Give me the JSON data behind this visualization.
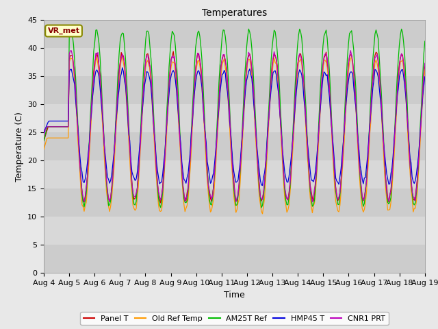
{
  "title": "Temperatures",
  "xlabel": "Time",
  "ylabel": "Temperature (C)",
  "ylim": [
    0,
    45
  ],
  "yticks": [
    0,
    5,
    10,
    15,
    20,
    25,
    30,
    35,
    40,
    45
  ],
  "background_color": "#e8e8e8",
  "plot_bg_color": "#d4d4d4",
  "series_colors": {
    "Panel T": "#cc0000",
    "Old Ref Temp": "#ff9900",
    "AM25T Ref": "#00bb00",
    "HMP45 T": "#0000dd",
    "CNR1 PRT": "#bb00bb"
  },
  "legend_label": "VR_met",
  "start_day": 4,
  "end_day": 19
}
